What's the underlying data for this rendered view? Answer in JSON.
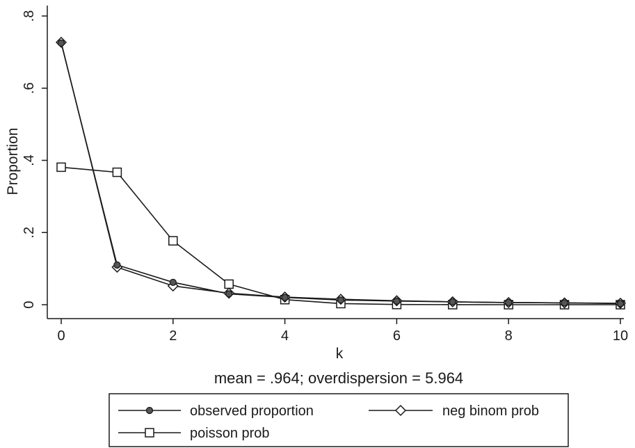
{
  "chart_data": {
    "type": "line",
    "title": "",
    "xlabel": "k",
    "ylabel": "Proportion",
    "note": "mean = .964; overdispersion = 5.964",
    "xlim": [
      0,
      10
    ],
    "ylim": [
      0,
      0.8
    ],
    "x_ticks": [
      0,
      2,
      4,
      6,
      8,
      10
    ],
    "x_tick_labels": [
      "0",
      "2",
      "4",
      "6",
      "8",
      "10"
    ],
    "y_ticks": [
      0,
      0.2,
      0.4,
      0.6,
      0.8
    ],
    "y_tick_labels": [
      "0",
      ".2",
      ".4",
      ".6",
      ".8"
    ],
    "grid": false,
    "legend_position": "bottom",
    "x": [
      0,
      1,
      2,
      3,
      4,
      5,
      6,
      7,
      8,
      9,
      10
    ],
    "series": [
      {
        "name": "observed proportion",
        "marker": "filled-circle",
        "values": [
          0.725,
          0.11,
          0.062,
          0.03,
          0.02,
          0.013,
          0.01,
          0.008,
          0.006,
          0.005,
          0.003
        ]
      },
      {
        "name": "neg binom prob",
        "marker": "hollow-diamond",
        "values": [
          0.727,
          0.104,
          0.052,
          0.032,
          0.021,
          0.015,
          0.011,
          0.008,
          0.006,
          0.005,
          0.004
        ]
      },
      {
        "name": "poisson prob",
        "marker": "hollow-square",
        "values": [
          0.381,
          0.367,
          0.177,
          0.057,
          0.014,
          0.003,
          0.0005,
          0.0001,
          0,
          0,
          0
        ]
      }
    ]
  }
}
